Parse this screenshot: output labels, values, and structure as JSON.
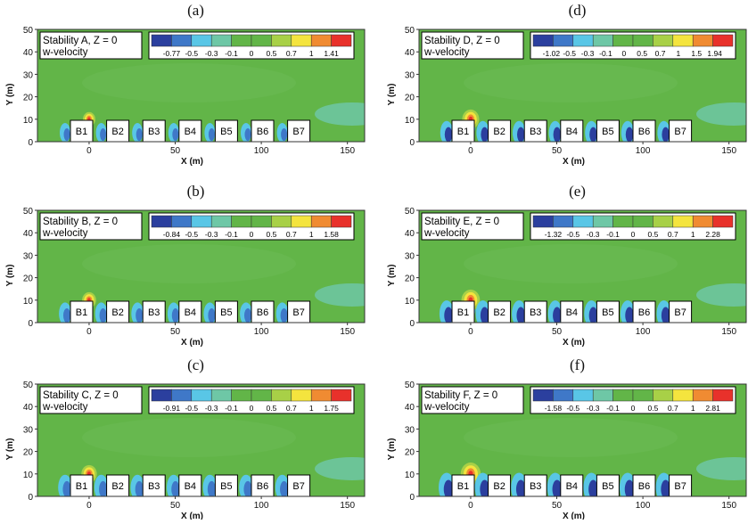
{
  "figure": {
    "x_axis_label": "X (m)",
    "y_axis_label": "Y (m)",
    "x_ticks": [
      "0",
      "50",
      "100",
      "150"
    ],
    "y_ticks": [
      "0",
      "10",
      "20",
      "30",
      "40",
      "50"
    ],
    "x_range": [
      -30,
      160
    ],
    "y_range": [
      0,
      50
    ],
    "buildings": [
      {
        "label": "B1",
        "x": 9
      },
      {
        "label": "B2",
        "x": 40
      },
      {
        "label": "B3",
        "x": 70
      },
      {
        "label": "B4",
        "x": 100
      },
      {
        "label": "B5",
        "x": 130
      },
      {
        "label": "B6",
        "x": 160
      },
      {
        "label": "B7",
        "x": 190
      }
    ],
    "variable_label": "w-velocity",
    "colormap": [
      "#2b3f9e",
      "#3f78c8",
      "#59c6e6",
      "#6ec7a6",
      "#62b548",
      "#62b548",
      "#a8d047",
      "#f4e43e",
      "#f08b32",
      "#e8312b"
    ],
    "background_color": "#62b548",
    "panels": [
      {
        "letter": "(a)",
        "title": "Stability A, Z = 0",
        "legend_ticks": [
          "-0.77",
          "-0.5",
          "-0.3",
          "-0.1",
          "0",
          "0.5",
          "0.7",
          "1",
          "1.41"
        ],
        "min": -0.77,
        "max": 1.41
      },
      {
        "letter": "(b)",
        "title": "Stability B, Z = 0",
        "legend_ticks": [
          "-0.84",
          "-0.5",
          "-0.3",
          "-0.1",
          "0",
          "0.5",
          "0.7",
          "1",
          "1.58"
        ],
        "min": -0.84,
        "max": 1.58
      },
      {
        "letter": "(c)",
        "title": "Stability C, Z = 0",
        "legend_ticks": [
          "-0.91",
          "-0.5",
          "-0.3",
          "-0.1",
          "0",
          "0.5",
          "0.7",
          "1",
          "1.75"
        ],
        "min": -0.91,
        "max": 1.75
      },
      {
        "letter": "(d)",
        "title": "Stability D, Z = 0",
        "legend_ticks": [
          "-1.02",
          "-0.5",
          "-0.3",
          "-0.1",
          "0",
          "0.5",
          "0.7",
          "1",
          "1.5",
          "1.94"
        ],
        "min": -1.02,
        "max": 1.94
      },
      {
        "letter": "(e)",
        "title": "Stability E, Z = 0",
        "legend_ticks": [
          "-1.32",
          "-0.5",
          "-0.3",
          "-0.1",
          "0",
          "0.5",
          "0.7",
          "1",
          "2.28"
        ],
        "min": -1.32,
        "max": 2.28
      },
      {
        "letter": "(f)",
        "title": "Stability F, Z = 0",
        "legend_ticks": [
          "-1.58",
          "-0.5",
          "-0.3",
          "-0.1",
          "0",
          "0.5",
          "0.7",
          "1",
          "2.81"
        ],
        "min": -1.58,
        "max": 2.81
      }
    ]
  }
}
